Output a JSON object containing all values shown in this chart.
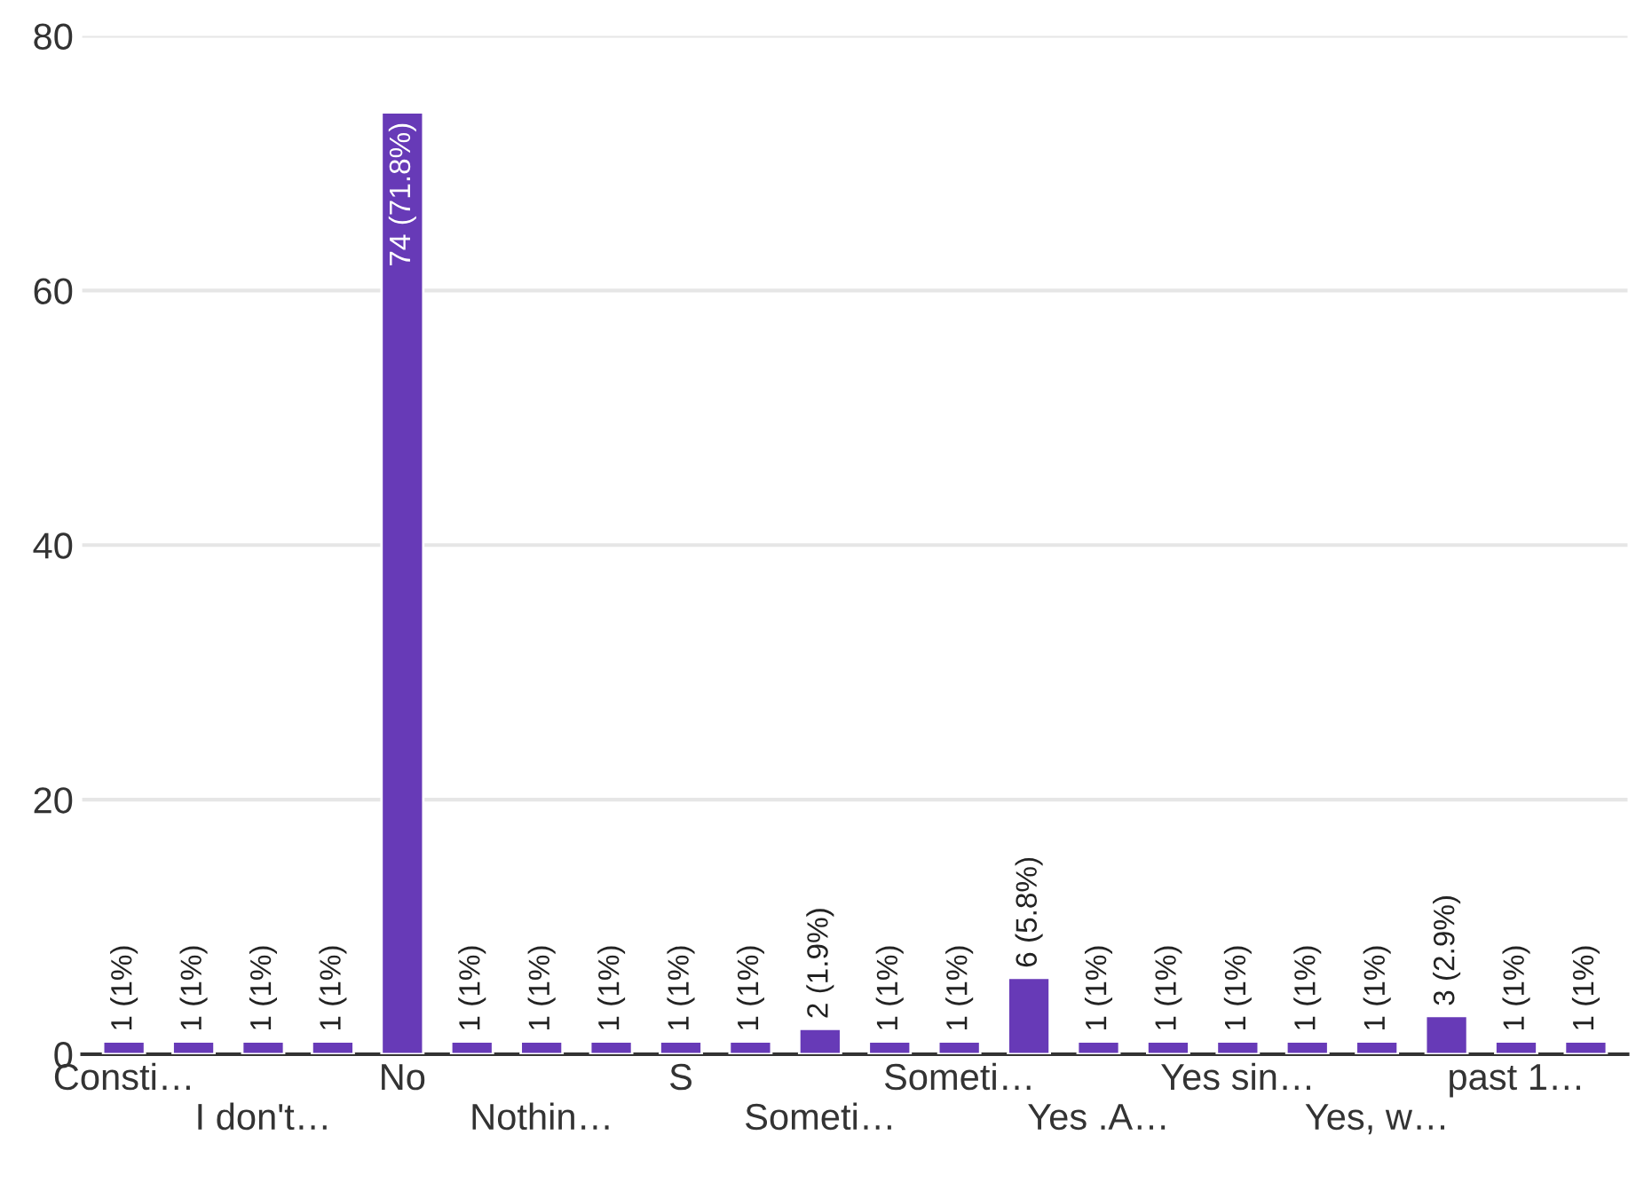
{
  "chart_data": {
    "type": "bar",
    "categories": [
      "Consti…",
      null,
      "I don't…",
      null,
      "No",
      null,
      "Nothin…",
      null,
      "S",
      null,
      "Someti…",
      null,
      "Someti…",
      null,
      "Yes .A…",
      null,
      "Yes sin…",
      null,
      "Yes, w…",
      null,
      "past 1…",
      null
    ],
    "values": [
      1,
      1,
      1,
      1,
      74,
      1,
      1,
      1,
      1,
      1,
      2,
      1,
      1,
      6,
      1,
      1,
      1,
      1,
      1,
      3,
      1,
      1
    ],
    "value_labels": [
      "1 (1%)",
      "1 (1%)",
      "1 (1%)",
      "1 (1%)",
      "74 (71.8%)",
      "1 (1%)",
      "1 (1%)",
      "1 (1%)",
      "1 (1%)",
      "1 (1%)",
      "2 (1.9%)",
      "1 (1%)",
      "1 (1%)",
      "6 (5.8%)",
      "1 (1%)",
      "1 (1%)",
      "1 (1%)",
      "1 (1%)",
      "1 (1%)",
      "3 (2.9%)",
      "1 (1%)",
      "1 (1%)"
    ],
    "color": "#673ab7",
    "ylim": [
      0,
      80
    ],
    "yticks": [
      0,
      20,
      40,
      60,
      80
    ],
    "grid": "y"
  }
}
